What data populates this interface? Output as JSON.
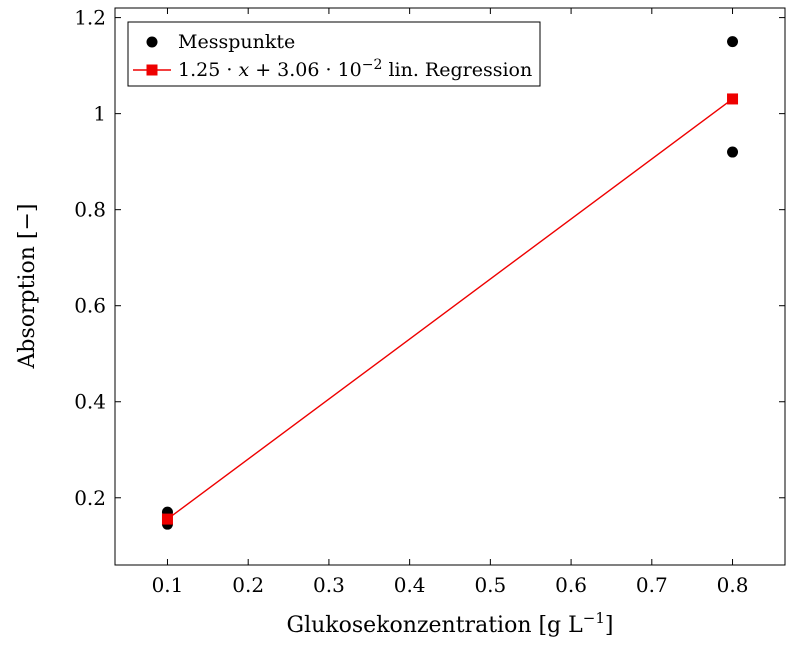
{
  "chart_data": {
    "type": "scatter",
    "title": "",
    "xlabel": {
      "pre": "Glukosekonzentration [g L",
      "sup": "−1",
      "post": "]"
    },
    "ylabel": "Absorption [−]",
    "xlim": [
      0.035,
      0.865
    ],
    "ylim": [
      0.06,
      1.22
    ],
    "x_ticks": [
      0.1,
      0.2,
      0.3,
      0.4,
      0.5,
      0.6,
      0.7,
      0.8
    ],
    "x_tick_labels": [
      "0.1",
      "0.2",
      "0.3",
      "0.4",
      "0.5",
      "0.6",
      "0.7",
      "0.8"
    ],
    "y_ticks": [
      0.2,
      0.4,
      0.6,
      0.8,
      1.0,
      1.2
    ],
    "y_tick_labels": [
      "0.2",
      "0.4",
      "0.6",
      "0.8",
      "1",
      "1.2"
    ],
    "grid": false,
    "legend_position": "top-left",
    "colors": {
      "points": "#000000",
      "regression": "#ee0000",
      "axis": "#000000"
    },
    "series": [
      {
        "name": "Messpunkte",
        "type": "scatter",
        "marker": "circle",
        "marker_radius": 5.5,
        "color": "#000000",
        "points": [
          [
            0.1,
            0.145
          ],
          [
            0.1,
            0.17
          ],
          [
            0.8,
            0.92
          ],
          [
            0.8,
            1.15
          ]
        ]
      },
      {
        "name": "lin. Regression",
        "type": "line",
        "marker": "square",
        "marker_size": 11,
        "color": "#ee0000",
        "equation": {
          "slope": 1.25,
          "intercept": 0.0306
        },
        "points": [
          [
            0.1,
            0.1556
          ],
          [
            0.8,
            1.0306
          ]
        ]
      }
    ],
    "legend": [
      {
        "label": "Messpunkte"
      },
      {
        "pre": "1.25 · ",
        "var": "x",
        "mid": " + 3.06 · 10",
        "sup": "−2",
        "post": " lin. Regression"
      }
    ]
  }
}
